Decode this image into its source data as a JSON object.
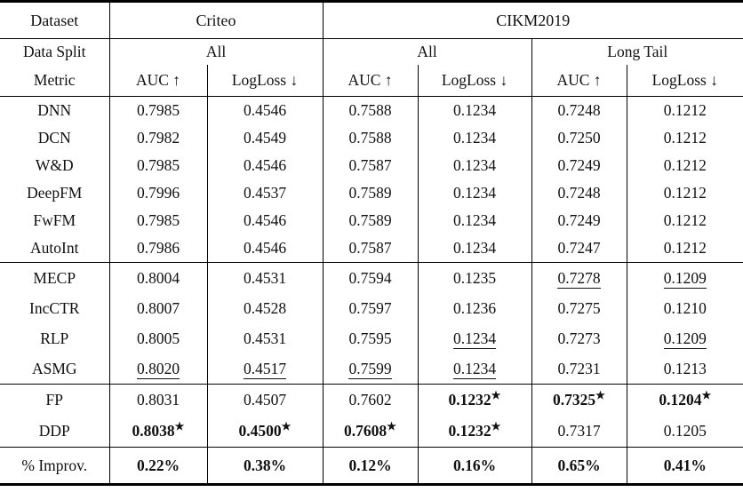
{
  "symbols": {
    "star": "★"
  },
  "header": {
    "dataset_label": "Dataset",
    "datasets": [
      "Criteo",
      "CIKM2019"
    ],
    "data_split_label": "Data Split",
    "metric_label": "Metric",
    "splits": [
      "All",
      "All",
      "Long Tail"
    ],
    "metrics": [
      "AUC ↑",
      "LogLoss ↓",
      "AUC ↑",
      "LogLoss ↓",
      "AUC ↑",
      "LogLoss ↓"
    ]
  },
  "groups": [
    {
      "name": "base-models",
      "rows": [
        {
          "label": "DNN",
          "cells": [
            {
              "t": "0.7985"
            },
            {
              "t": "0.4546"
            },
            {
              "t": "0.7588"
            },
            {
              "t": "0.1234"
            },
            {
              "t": "0.7248"
            },
            {
              "t": "0.1212"
            }
          ]
        },
        {
          "label": "DCN",
          "cells": [
            {
              "t": "0.7982"
            },
            {
              "t": "0.4549"
            },
            {
              "t": "0.7588"
            },
            {
              "t": "0.1234"
            },
            {
              "t": "0.7250"
            },
            {
              "t": "0.1212"
            }
          ]
        },
        {
          "label": "W&D",
          "cells": [
            {
              "t": "0.7985"
            },
            {
              "t": "0.4546"
            },
            {
              "t": "0.7587"
            },
            {
              "t": "0.1234"
            },
            {
              "t": "0.7249"
            },
            {
              "t": "0.1212"
            }
          ]
        },
        {
          "label": "DeepFM",
          "cells": [
            {
              "t": "0.7996"
            },
            {
              "t": "0.4537"
            },
            {
              "t": "0.7589"
            },
            {
              "t": "0.1234"
            },
            {
              "t": "0.7248"
            },
            {
              "t": "0.1212"
            }
          ]
        },
        {
          "label": "FwFM",
          "cells": [
            {
              "t": "0.7985"
            },
            {
              "t": "0.4546"
            },
            {
              "t": "0.7589"
            },
            {
              "t": "0.1234"
            },
            {
              "t": "0.7249"
            },
            {
              "t": "0.1212"
            }
          ]
        },
        {
          "label": "AutoInt",
          "cells": [
            {
              "t": "0.7986"
            },
            {
              "t": "0.4546"
            },
            {
              "t": "0.7587"
            },
            {
              "t": "0.1234"
            },
            {
              "t": "0.7247"
            },
            {
              "t": "0.1212"
            }
          ]
        }
      ]
    },
    {
      "name": "baseline-methods",
      "rows": [
        {
          "label": "MECP",
          "cells": [
            {
              "t": "0.8004"
            },
            {
              "t": "0.4531"
            },
            {
              "t": "0.7594"
            },
            {
              "t": "0.1235"
            },
            {
              "t": "0.7278",
              "u": true
            },
            {
              "t": "0.1209",
              "u": true
            }
          ]
        },
        {
          "label": "IncCTR",
          "cells": [
            {
              "t": "0.8007"
            },
            {
              "t": "0.4528"
            },
            {
              "t": "0.7597"
            },
            {
              "t": "0.1236"
            },
            {
              "t": "0.7275"
            },
            {
              "t": "0.1210"
            }
          ]
        },
        {
          "label": "RLP",
          "cells": [
            {
              "t": "0.8005"
            },
            {
              "t": "0.4531"
            },
            {
              "t": "0.7595"
            },
            {
              "t": "0.1234",
              "u": true
            },
            {
              "t": "0.7273"
            },
            {
              "t": "0.1209",
              "u": true
            }
          ]
        },
        {
          "label": "ASMG",
          "cells": [
            {
              "t": "0.8020",
              "u": true
            },
            {
              "t": "0.4517",
              "u": true
            },
            {
              "t": "0.7599",
              "u": true
            },
            {
              "t": "0.1234",
              "u": true
            },
            {
              "t": "0.7231"
            },
            {
              "t": "0.1213"
            }
          ]
        }
      ]
    },
    {
      "name": "proposed-methods",
      "rows": [
        {
          "label": "FP",
          "cells": [
            {
              "t": "0.8031"
            },
            {
              "t": "0.4507"
            },
            {
              "t": "0.7602"
            },
            {
              "t": "0.1232",
              "b": true,
              "s": true
            },
            {
              "t": "0.7325",
              "b": true,
              "s": true
            },
            {
              "t": "0.1204",
              "b": true,
              "s": true
            }
          ]
        },
        {
          "label": "DDP",
          "cells": [
            {
              "t": "0.8038",
              "b": true,
              "s": true
            },
            {
              "t": "0.4500",
              "b": true,
              "s": true
            },
            {
              "t": "0.7608",
              "b": true,
              "s": true
            },
            {
              "t": "0.1232",
              "b": true,
              "s": true
            },
            {
              "t": "0.7317"
            },
            {
              "t": "0.1205"
            }
          ]
        }
      ]
    },
    {
      "name": "improvement",
      "rows": [
        {
          "label": "% Improv.",
          "cells": [
            {
              "t": "0.22%",
              "b": true
            },
            {
              "t": "0.38%",
              "b": true
            },
            {
              "t": "0.12%",
              "b": true
            },
            {
              "t": "0.16%",
              "b": true
            },
            {
              "t": "0.65%",
              "b": true
            },
            {
              "t": "0.41%",
              "b": true
            }
          ]
        }
      ]
    }
  ]
}
